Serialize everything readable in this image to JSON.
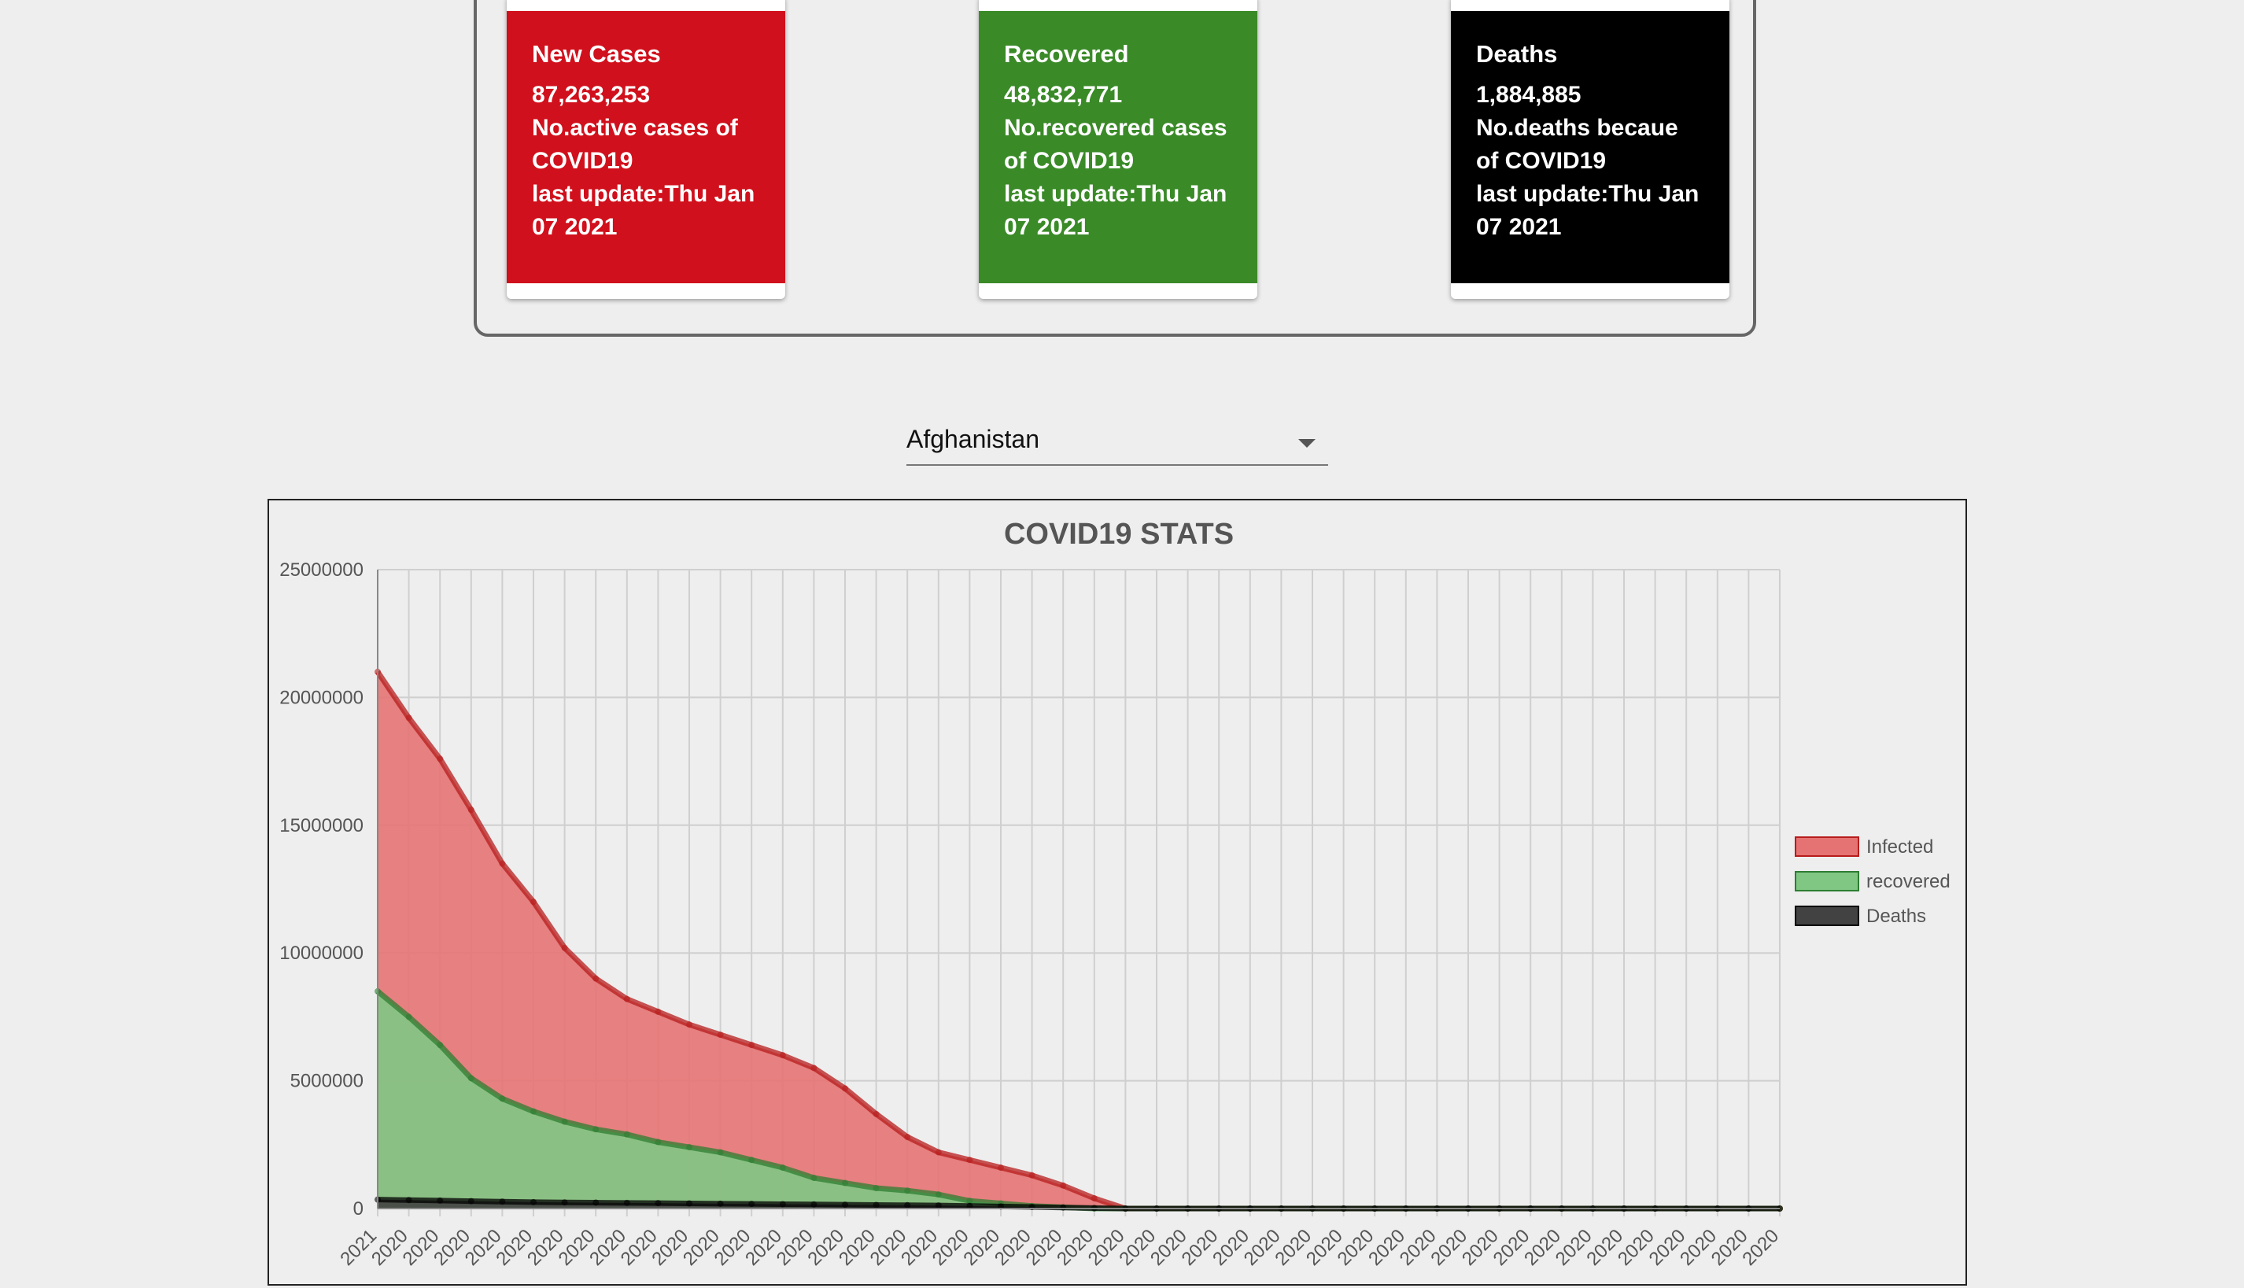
{
  "cards": [
    {
      "title": "New Cases",
      "value": "87,263,253",
      "desc1": "No.active cases of",
      "desc2": "COVID19",
      "update1": "last update:Thu Jan",
      "update2": "07 2021",
      "color": "#d0101c"
    },
    {
      "title": "Recovered",
      "value": "48,832,771",
      "desc1": "No.recovered cases",
      "desc2": "of COVID19",
      "update1": "last update:Thu Jan",
      "update2": "07 2021",
      "color": "#3a8a28"
    },
    {
      "title": "Deaths",
      "value": "1,884,885",
      "desc1": "No.deaths becaue",
      "desc2": "of COVID19",
      "update1": "last update:Thu Jan",
      "update2": "07 2021",
      "color": "#000000"
    }
  ],
  "country_select": {
    "value": "Afghanistan"
  },
  "chart_data": {
    "type": "area",
    "title": "COVID19 STATS",
    "yticks": [
      "25000000",
      "20000000",
      "15000000",
      "10000000",
      "5000000",
      "0"
    ],
    "ylim": [
      0,
      25000000
    ],
    "x_labels": [
      "2021",
      "2020",
      "2020",
      "2020",
      "2020",
      "2020",
      "2020",
      "2020",
      "2020",
      "2020",
      "2020",
      "2020",
      "2020",
      "2020",
      "2020",
      "2020",
      "2020",
      "2020",
      "2020",
      "2020",
      "2020",
      "2020",
      "2020",
      "2020",
      "2020",
      "2020",
      "2020",
      "2020",
      "2020",
      "2020",
      "2020",
      "2020",
      "2020",
      "2020",
      "2020",
      "2020",
      "2020",
      "2020",
      "2020",
      "2020",
      "2020",
      "2020",
      "2020",
      "2020",
      "2020",
      "2020"
    ],
    "legend_position": "right",
    "grid": true,
    "series": [
      {
        "name": "Infected",
        "color": "#e57373",
        "line_color": "#b71c1c",
        "values": [
          21000000,
          19200000,
          17600000,
          15600000,
          13500000,
          12000000,
          10200000,
          9000000,
          8200000,
          7700000,
          7200000,
          6800000,
          6400000,
          6000000,
          5500000,
          4700000,
          3700000,
          2800000,
          2200000,
          1900000,
          1600000,
          1300000,
          900000,
          400000,
          0,
          0,
          0,
          0,
          0,
          0,
          0,
          0,
          0,
          0,
          0,
          0,
          0,
          0,
          0,
          0,
          0,
          0,
          0,
          0,
          0,
          0
        ]
      },
      {
        "name": "recovered",
        "color": "#81c784",
        "line_color": "#2e7d32",
        "values": [
          8500000,
          7500000,
          6400000,
          5100000,
          4300000,
          3800000,
          3400000,
          3100000,
          2900000,
          2600000,
          2400000,
          2200000,
          1900000,
          1600000,
          1200000,
          1000000,
          800000,
          700000,
          550000,
          300000,
          200000,
          100000,
          50000,
          0,
          0,
          0,
          0,
          0,
          0,
          0,
          0,
          0,
          0,
          0,
          0,
          0,
          0,
          0,
          0,
          0,
          0,
          0,
          0,
          0,
          0,
          0
        ]
      },
      {
        "name": "Deaths",
        "color": "#424242",
        "line_color": "#000000",
        "values": [
          350000,
          330000,
          310000,
          290000,
          270000,
          250000,
          240000,
          230000,
          220000,
          210000,
          200000,
          190000,
          180000,
          170000,
          160000,
          150000,
          140000,
          130000,
          120000,
          100000,
          80000,
          60000,
          40000,
          20000,
          0,
          0,
          0,
          0,
          0,
          0,
          0,
          0,
          0,
          0,
          0,
          0,
          0,
          0,
          0,
          0,
          0,
          0,
          0,
          0,
          0,
          0
        ]
      }
    ]
  }
}
